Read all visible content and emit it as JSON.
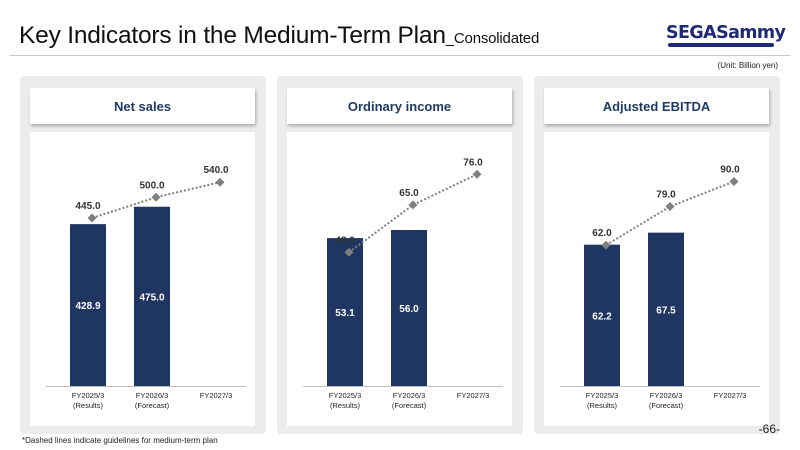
{
  "header": {
    "title": "Key Indicators in the Medium-Term Plan",
    "subtitle": "_Consolidated",
    "logo_text": "SEGASammy",
    "unit": "(Unit: Billion yen)"
  },
  "chart_data": [
    {
      "type": "bar",
      "title": "Net sales",
      "categories": [
        "FY2025/3\n(Results)",
        "FY2026/3\n(Forecast)",
        "FY2027/3"
      ],
      "series": [
        {
          "values": [
            428.9,
            475.0,
            null
          ],
          "labels": [
            "428.9",
            "475.0",
            ""
          ]
        },
        {
          "values": [
            445.0,
            500.0,
            540.0
          ],
          "labels": [
            "445.0",
            "500.0",
            "540.0"
          ]
        }
      ],
      "ylim": [
        0,
        620
      ]
    },
    {
      "type": "bar",
      "title": "Ordinary income",
      "categories": [
        "FY2025/3\n(Results)",
        "FY2026/3\n(Forecast)",
        "FY2027/3"
      ],
      "series": [
        {
          "values": [
            53.1,
            56.0,
            null
          ],
          "labels": [
            "53.1",
            "56.0",
            ""
          ]
        },
        {
          "values": [
            48.0,
            65.0,
            76.0
          ],
          "labels": [
            "48.0",
            "65.0",
            "76.0"
          ]
        }
      ],
      "ylim": [
        0,
        84
      ]
    },
    {
      "type": "bar",
      "title": "Adjusted EBITDA",
      "categories": [
        "FY2025/3\n(Results)",
        "FY2026/3\n(Forecast)",
        "FY2027/3"
      ],
      "series": [
        {
          "values": [
            62.2,
            67.5,
            null
          ],
          "labels": [
            "62.2",
            "67.5",
            ""
          ]
        },
        {
          "values": [
            62.0,
            79.0,
            90.0
          ],
          "labels": [
            "62.0",
            "79.0",
            "90.0"
          ]
        }
      ],
      "ylim": [
        0,
        103
      ]
    }
  ],
  "footer": {
    "note": "*Dashed lines indicate guidelines for medium-term plan",
    "page": "-66-"
  },
  "colors": {
    "bar": "#1f3662",
    "guide": "#7f7f7f",
    "title_text": "#1f3a64",
    "panel_bg": "#ececec"
  }
}
